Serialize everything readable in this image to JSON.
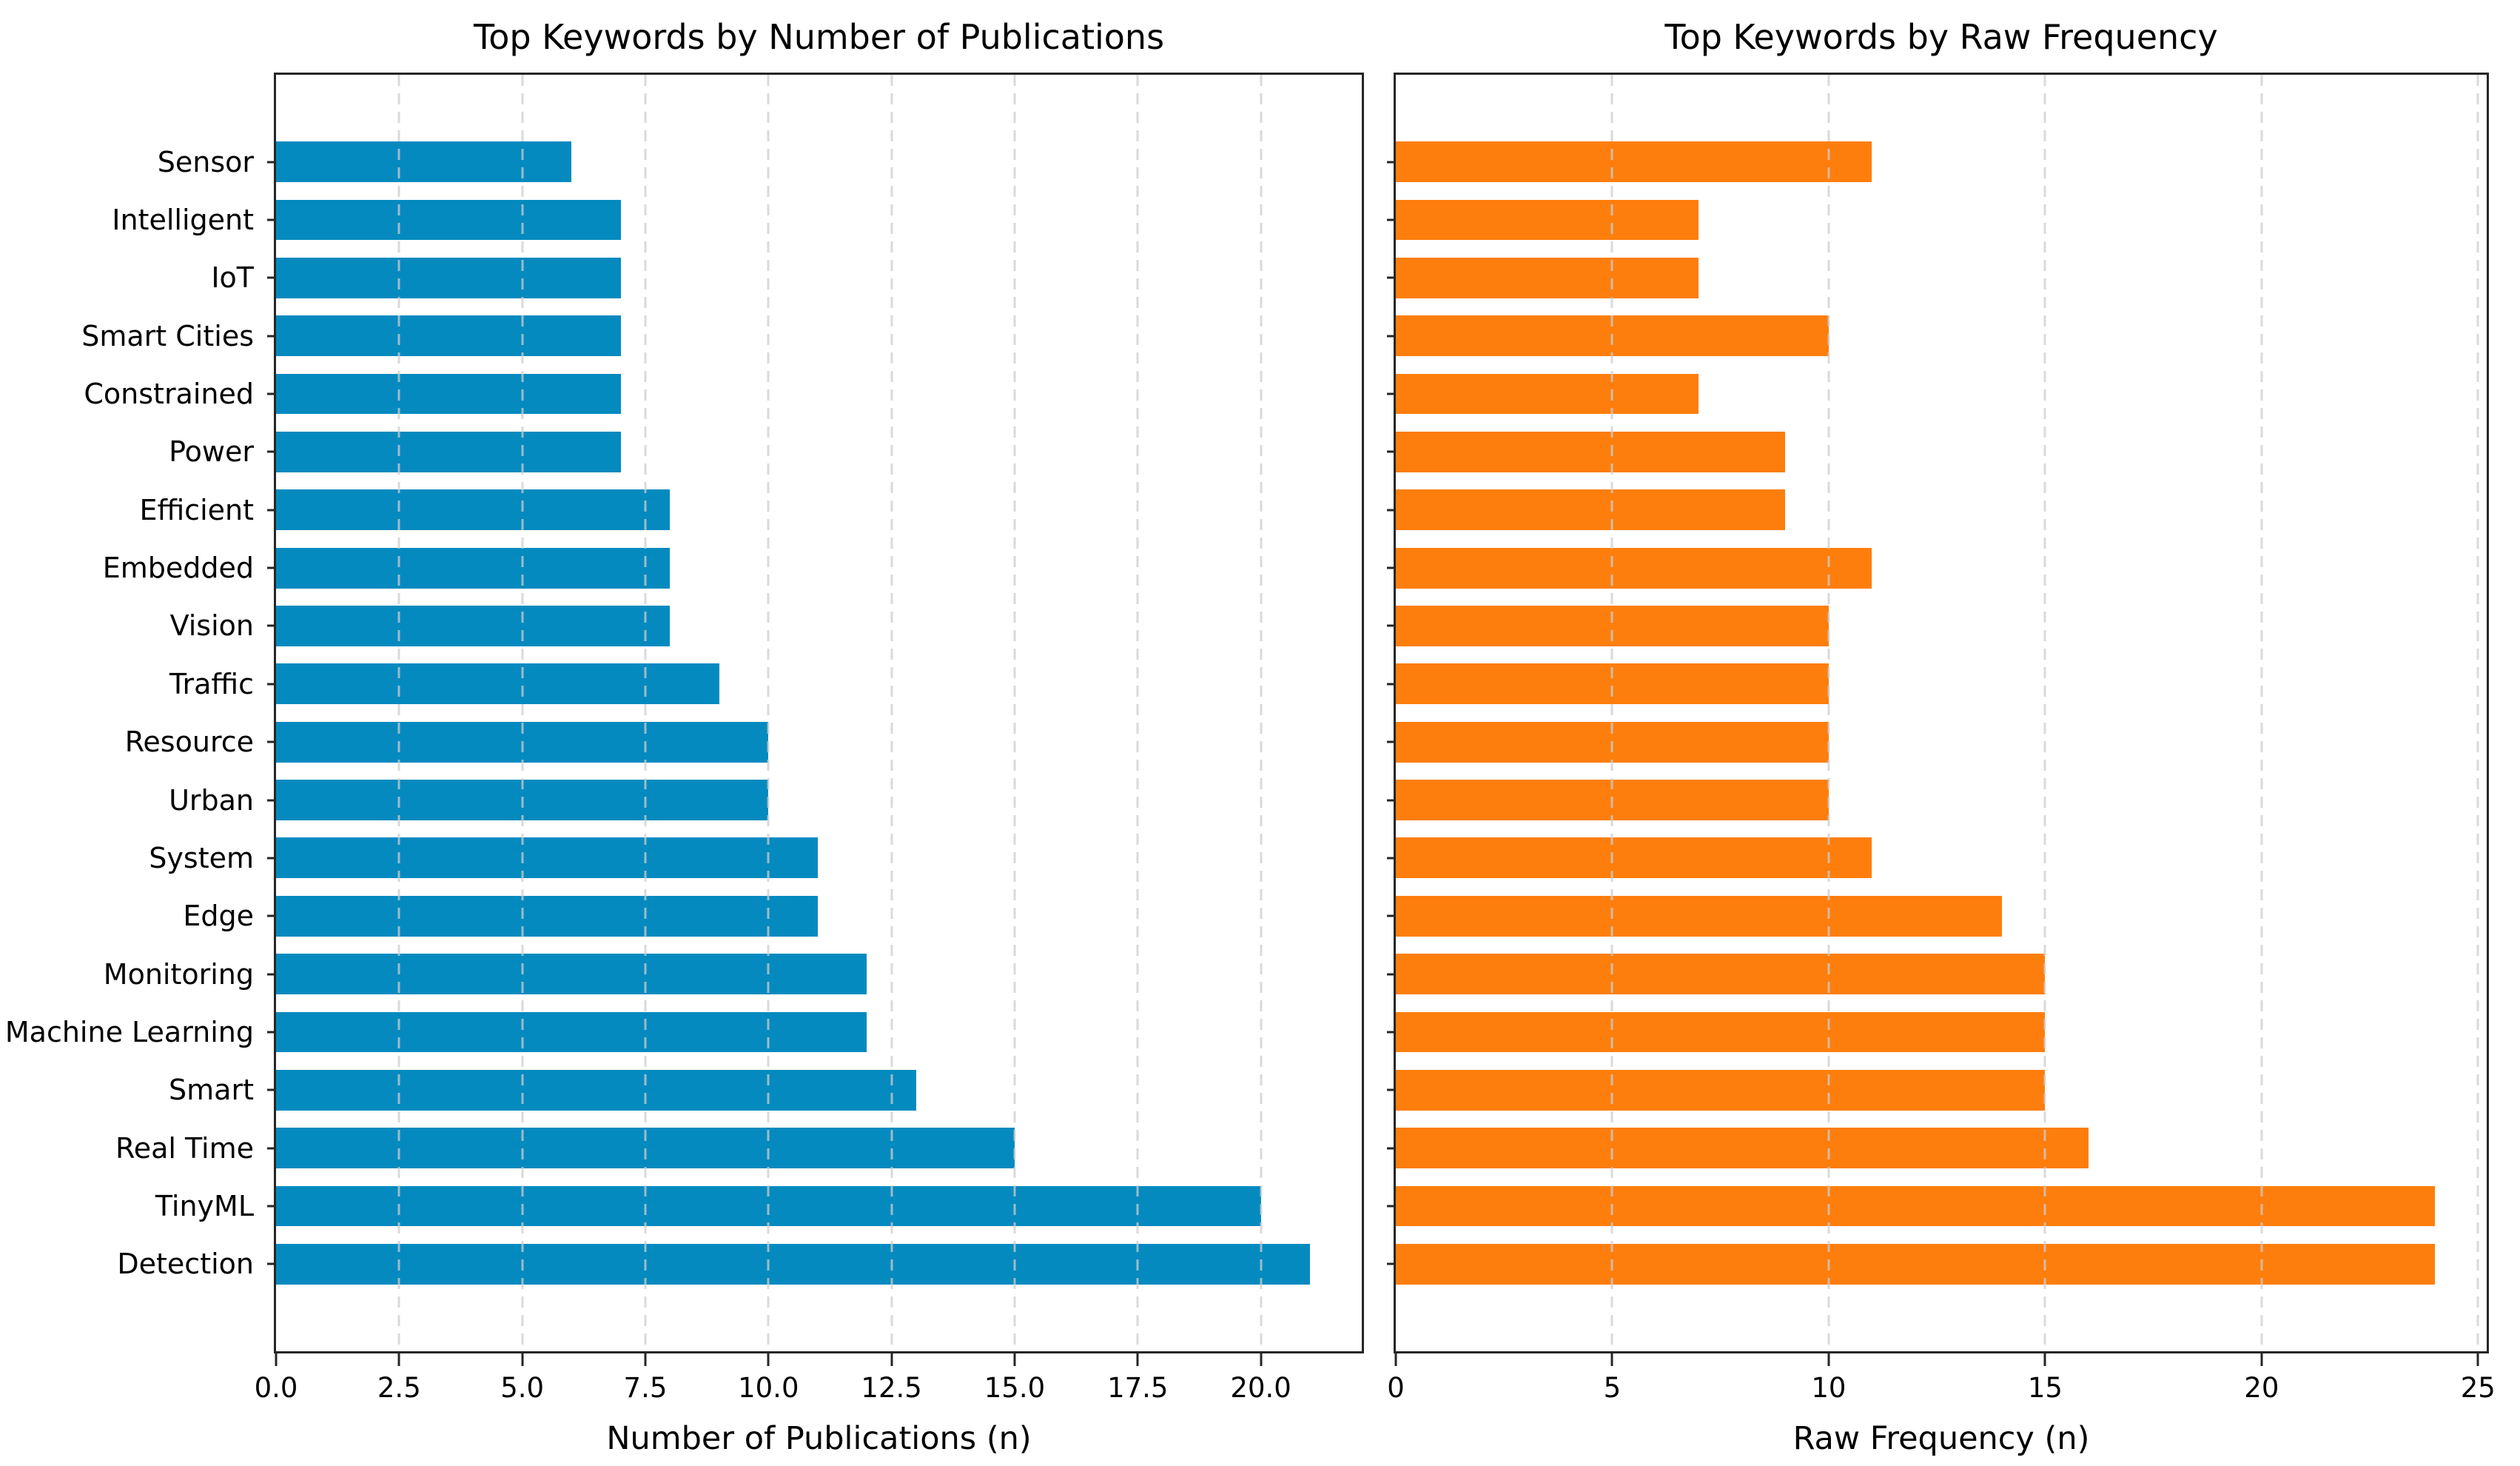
{
  "figure": {
    "background": "#ffffff",
    "spine_color": "#262626",
    "grid_color": "#cdcdcd",
    "text_color": "#000000"
  },
  "chart_data": [
    {
      "type": "bar",
      "orientation": "horizontal",
      "title": "Top Keywords by Number of Publications",
      "xlabel": "Number of Publications (n)",
      "bar_color": "#058abf",
      "grid": true,
      "show_category_labels": true,
      "categories": [
        "Sensor",
        "Intelligent",
        "IoT",
        "Smart Cities",
        "Constrained",
        "Power",
        "Efficient",
        "Embedded",
        "Vision",
        "Traffic",
        "Resource",
        "Urban",
        "System",
        "Edge",
        "Monitoring",
        "Machine Learning",
        "Smart",
        "Real Time",
        "TinyML",
        "Detection"
      ],
      "values": [
        6,
        7,
        7,
        7,
        7,
        7,
        8,
        8,
        8,
        9,
        10,
        10,
        11,
        11,
        12,
        12,
        13,
        15,
        20,
        21
      ],
      "xlim": [
        0,
        22.05
      ],
      "xtick_values": [
        0,
        2.5,
        5,
        7.5,
        10,
        12.5,
        15,
        17.5,
        20
      ],
      "xtick_labels": [
        "0.0",
        "2.5",
        "5.0",
        "7.5",
        "10.0",
        "12.5",
        "15.0",
        "17.5",
        "20.0"
      ]
    },
    {
      "type": "bar",
      "orientation": "horizontal",
      "title": "Top Keywords by Raw Frequency",
      "xlabel": "Raw Frequency (n)",
      "bar_color": "#fd7e0d",
      "grid": true,
      "show_category_labels": false,
      "categories": [
        "Sensor",
        "Intelligent",
        "IoT",
        "Smart Cities",
        "Constrained",
        "Power",
        "Efficient",
        "Embedded",
        "Vision",
        "Traffic",
        "Resource",
        "Urban",
        "System",
        "Edge",
        "Monitoring",
        "Machine Learning",
        "Smart",
        "Real Time",
        "TinyML",
        "Detection"
      ],
      "values": [
        11,
        7,
        7,
        10,
        7,
        9,
        9,
        11,
        10,
        10,
        10,
        10,
        11,
        14,
        15,
        15,
        15,
        16,
        24,
        24
      ],
      "xlim": [
        0,
        25.2
      ],
      "xtick_values": [
        0,
        5,
        10,
        15,
        20,
        25
      ],
      "xtick_labels": [
        "0",
        "5",
        "10",
        "15",
        "20",
        "25"
      ]
    }
  ]
}
